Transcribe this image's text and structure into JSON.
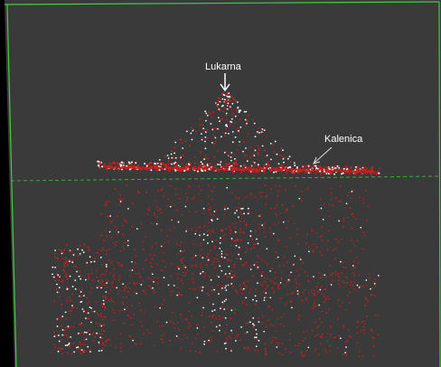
{
  "viewer": {
    "background_color": "#000000",
    "canvas_color": "#3a3a3a",
    "frame_color": "#3cd23c",
    "reference_line_color": "#34b034",
    "point_colors": {
      "primary": "#d41c1c",
      "secondary": "#ffffff"
    }
  },
  "annotations": {
    "lukarna": {
      "text": "Lukarna",
      "arrow_color": "#ffffff"
    },
    "kalenica": {
      "text": "Kalenica",
      "arrow_color": "#dddddd"
    }
  }
}
